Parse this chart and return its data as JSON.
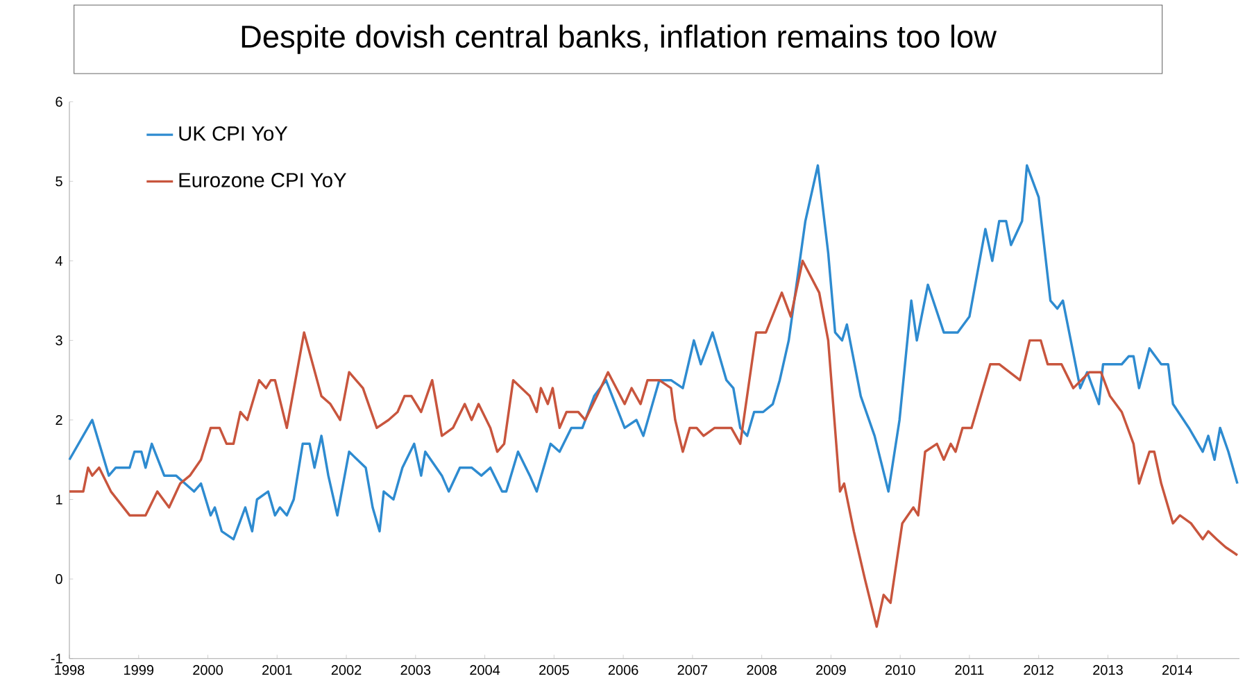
{
  "chart_data": {
    "type": "line",
    "title": "Despite dovish central banks, inflation remains too low",
    "xlim": [
      1998,
      2014.9
    ],
    "ylim": [
      -1,
      6
    ],
    "xticks": [
      1998,
      1999,
      2000,
      2001,
      2002,
      2003,
      2004,
      2005,
      2006,
      2007,
      2008,
      2009,
      2010,
      2011,
      2012,
      2013,
      2014
    ],
    "yticks": [
      -1,
      0,
      1,
      2,
      3,
      4,
      5,
      6
    ],
    "grid": false,
    "legend": "top left",
    "marker": "none",
    "line_style": "solid",
    "series": [
      {
        "name": "UK CPI YoY",
        "color": "#2e8bd0",
        "x": [
          1998.0,
          1998.33,
          1998.57,
          1998.67,
          1998.87,
          1998.94,
          1999.04,
          1999.1,
          1999.19,
          1999.37,
          1999.54,
          1999.8,
          1999.9,
          2000.04,
          2000.1,
          2000.2,
          2000.37,
          2000.54,
          2000.64,
          2000.71,
          2000.87,
          2000.97,
          2001.04,
          2001.14,
          2001.24,
          2001.37,
          2001.47,
          2001.54,
          2001.64,
          2001.74,
          2001.87,
          2002.04,
          2002.28,
          2002.38,
          2002.48,
          2002.54,
          2002.68,
          2002.81,
          2002.98,
          2003.08,
          2003.14,
          2003.38,
          2003.48,
          2003.64,
          2003.81,
          2003.95,
          2004.08,
          2004.25,
          2004.31,
          2004.48,
          2004.65,
          2004.75,
          2004.95,
          2005.08,
          2005.25,
          2005.41,
          2005.58,
          2005.75,
          2006.02,
          2006.19,
          2006.29,
          2006.52,
          2006.69,
          2006.86,
          2007.02,
          2007.12,
          2007.29,
          2007.49,
          2007.59,
          2007.69,
          2007.79,
          2007.89,
          2008.02,
          2008.16,
          2008.26,
          2008.39,
          2008.63,
          2008.81,
          2008.96,
          2009.06,
          2009.16,
          2009.23,
          2009.43,
          2009.63,
          2009.83,
          2009.99,
          2010.16,
          2010.24,
          2010.4,
          2010.63,
          2010.83,
          2011.0,
          2011.23,
          2011.33,
          2011.43,
          2011.53,
          2011.6,
          2011.76,
          2011.83,
          2012.0,
          2012.17,
          2012.27,
          2012.35,
          2012.6,
          2012.7,
          2012.87,
          2012.93,
          2013.2,
          2013.3,
          2013.37,
          2013.45,
          2013.6,
          2013.77,
          2013.87,
          2013.94,
          2014.17,
          2014.37,
          2014.45,
          2014.54,
          2014.62,
          2014.74,
          2014.87
        ],
        "values": [
          1.5,
          2.0,
          1.3,
          1.4,
          1.4,
          1.6,
          1.6,
          1.4,
          1.7,
          1.3,
          1.3,
          1.1,
          1.2,
          0.8,
          0.9,
          0.6,
          0.5,
          0.9,
          0.6,
          1.0,
          1.1,
          0.8,
          0.9,
          0.8,
          1.0,
          1.7,
          1.7,
          1.4,
          1.8,
          1.3,
          0.8,
          1.6,
          1.4,
          0.9,
          0.6,
          1.1,
          1.0,
          1.4,
          1.7,
          1.3,
          1.6,
          1.3,
          1.1,
          1.4,
          1.4,
          1.3,
          1.4,
          1.1,
          1.1,
          1.6,
          1.3,
          1.1,
          1.7,
          1.6,
          1.9,
          1.9,
          2.3,
          2.5,
          1.9,
          2.0,
          1.8,
          2.5,
          2.5,
          2.4,
          3.0,
          2.7,
          3.1,
          2.5,
          2.4,
          1.9,
          1.8,
          2.1,
          2.1,
          2.2,
          2.5,
          3.0,
          4.5,
          5.2,
          4.1,
          3.1,
          3.0,
          3.2,
          2.3,
          1.8,
          1.1,
          2.0,
          3.5,
          3.0,
          3.7,
          3.1,
          3.1,
          3.3,
          4.4,
          4.0,
          4.5,
          4.5,
          4.2,
          4.5,
          5.2,
          4.8,
          3.5,
          3.4,
          3.5,
          2.4,
          2.6,
          2.2,
          2.7,
          2.7,
          2.8,
          2.8,
          2.4,
          2.9,
          2.7,
          2.7,
          2.2,
          1.9,
          1.6,
          1.8,
          1.5,
          1.9,
          1.6,
          1.2
        ]
      },
      {
        "name": "Eurozone CPI YoY",
        "color": "#c8553d",
        "x": [
          1998.0,
          1998.2,
          1998.27,
          1998.33,
          1998.43,
          1998.6,
          1998.87,
          1999.1,
          1999.27,
          1999.44,
          1999.6,
          1999.74,
          1999.9,
          2000.04,
          2000.17,
          2000.27,
          2000.37,
          2000.47,
          2000.57,
          2000.74,
          2000.84,
          2000.91,
          2000.97,
          2001.14,
          2001.39,
          2001.64,
          2001.77,
          2001.91,
          2002.04,
          2002.24,
          2002.44,
          2002.61,
          2002.74,
          2002.84,
          2002.94,
          2003.08,
          2003.24,
          2003.38,
          2003.54,
          2003.71,
          2003.81,
          2003.91,
          2004.08,
          2004.18,
          2004.28,
          2004.41,
          2004.65,
          2004.75,
          2004.81,
          2004.91,
          2004.98,
          2005.08,
          2005.18,
          2005.35,
          2005.45,
          2005.62,
          2005.78,
          2006.02,
          2006.12,
          2006.25,
          2006.35,
          2006.52,
          2006.69,
          2006.75,
          2006.86,
          2006.96,
          2007.06,
          2007.16,
          2007.32,
          2007.56,
          2007.69,
          2007.92,
          2008.06,
          2008.29,
          2008.42,
          2008.59,
          2008.83,
          2008.96,
          2009.13,
          2009.19,
          2009.33,
          2009.49,
          2009.66,
          2009.76,
          2009.86,
          2010.03,
          2010.19,
          2010.26,
          2010.36,
          2010.53,
          2010.63,
          2010.73,
          2010.8,
          2010.9,
          2011.03,
          2011.3,
          2011.43,
          2011.73,
          2011.87,
          2012.03,
          2012.13,
          2012.33,
          2012.5,
          2012.73,
          2012.9,
          2013.03,
          2013.2,
          2013.37,
          2013.45,
          2013.6,
          2013.67,
          2013.77,
          2013.94,
          2014.04,
          2014.2,
          2014.37,
          2014.45,
          2014.57,
          2014.7,
          2014.87
        ],
        "values": [
          1.1,
          1.1,
          1.4,
          1.3,
          1.4,
          1.1,
          0.8,
          0.8,
          1.1,
          0.9,
          1.2,
          1.3,
          1.5,
          1.9,
          1.9,
          1.7,
          1.7,
          2.1,
          2.0,
          2.5,
          2.4,
          2.5,
          2.5,
          1.9,
          3.1,
          2.3,
          2.2,
          2.0,
          2.6,
          2.4,
          1.9,
          2.0,
          2.1,
          2.3,
          2.3,
          2.1,
          2.5,
          1.8,
          1.9,
          2.2,
          2.0,
          2.2,
          1.9,
          1.6,
          1.7,
          2.5,
          2.3,
          2.1,
          2.4,
          2.2,
          2.4,
          1.9,
          2.1,
          2.1,
          2.0,
          2.3,
          2.6,
          2.2,
          2.4,
          2.2,
          2.5,
          2.5,
          2.4,
          2.0,
          1.6,
          1.9,
          1.9,
          1.8,
          1.9,
          1.9,
          1.7,
          3.1,
          3.1,
          3.6,
          3.3,
          4.0,
          3.6,
          3.0,
          1.1,
          1.2,
          0.6,
          0.0,
          -0.6,
          -0.2,
          -0.3,
          0.7,
          0.9,
          0.8,
          1.6,
          1.7,
          1.5,
          1.7,
          1.6,
          1.9,
          1.9,
          2.7,
          2.7,
          2.5,
          3.0,
          3.0,
          2.7,
          2.7,
          2.4,
          2.6,
          2.6,
          2.3,
          2.1,
          1.7,
          1.2,
          1.6,
          1.6,
          1.2,
          0.7,
          0.8,
          0.7,
          0.5,
          0.6,
          0.5,
          0.4,
          0.3
        ]
      }
    ]
  }
}
